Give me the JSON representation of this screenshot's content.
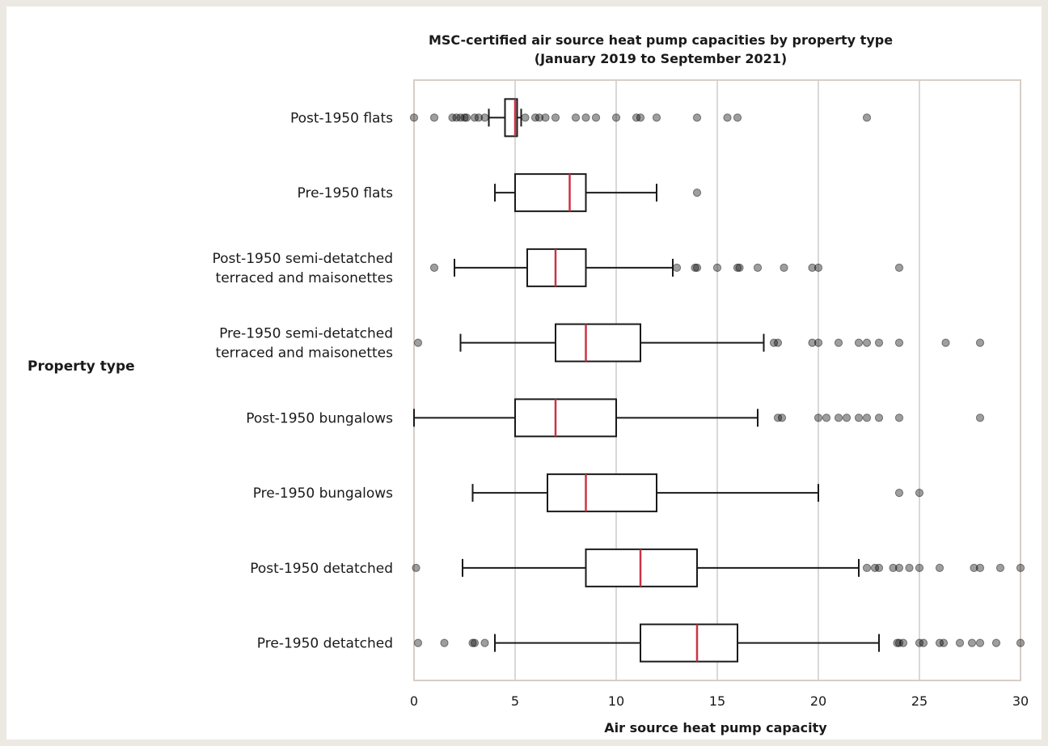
{
  "chart_data": {
    "type": "boxplot",
    "orientation": "horizontal",
    "title": "MSC-certified air source heat pump capacities by property type",
    "subtitle": "(January 2019 to September 2021)",
    "xlabel": "Air source heat pump capacity",
    "ylabel": "Property type",
    "xlim": [
      0,
      30
    ],
    "xticks": [
      0,
      5,
      10,
      15,
      20,
      25,
      30
    ],
    "grid": "vertical",
    "colors": {
      "median": "#cc3344",
      "box": "#1a1a1a",
      "grid": "#cccccc",
      "frame": "#d9ccc7",
      "background": "#ece8e2"
    },
    "categories": [
      {
        "label": [
          "Post-1950 flats"
        ],
        "whisker_low": 3.7,
        "q1": 4.5,
        "median": 5.0,
        "q3": 5.1,
        "whisker_high": 5.3,
        "outliers": [
          0.0,
          1.0,
          1.9,
          2.1,
          2.3,
          2.5,
          2.6,
          3.0,
          3.2,
          3.5,
          5.5,
          6.0,
          6.2,
          6.5,
          7.0,
          8.0,
          8.5,
          9.0,
          10.0,
          11.0,
          11.2,
          12.0,
          14.0,
          15.5,
          16.0,
          22.4
        ]
      },
      {
        "label": [
          "Pre-1950 flats"
        ],
        "whisker_low": 4.0,
        "q1": 5.0,
        "median": 7.7,
        "q3": 8.5,
        "whisker_high": 12.0,
        "outliers": [
          14.0
        ]
      },
      {
        "label": [
          "Post-1950 semi-detatched",
          "terraced and maisonettes"
        ],
        "whisker_low": 2.0,
        "q1": 5.6,
        "median": 7.0,
        "q3": 8.5,
        "whisker_high": 12.8,
        "outliers": [
          1.0,
          13.0,
          13.9,
          14.0,
          15.0,
          16.0,
          16.1,
          17.0,
          18.3,
          19.7,
          20.0,
          24.0
        ]
      },
      {
        "label": [
          "Pre-1950 semi-detatched",
          "terraced and maisonettes"
        ],
        "whisker_low": 2.3,
        "q1": 7.0,
        "median": 8.5,
        "q3": 11.2,
        "whisker_high": 17.3,
        "outliers": [
          0.2,
          17.8,
          18.0,
          19.7,
          20.0,
          21.0,
          22.0,
          22.4,
          23.0,
          24.0,
          26.3,
          28.0
        ]
      },
      {
        "label": [
          "Post-1950 bungalows"
        ],
        "whisker_low": 0.0,
        "q1": 5.0,
        "median": 7.0,
        "q3": 10.0,
        "whisker_high": 17.0,
        "outliers": [
          18.0,
          18.2,
          20.0,
          20.4,
          21.0,
          21.4,
          22.0,
          22.4,
          23.0,
          24.0,
          28.0
        ]
      },
      {
        "label": [
          "Pre-1950 bungalows"
        ],
        "whisker_low": 2.9,
        "q1": 6.6,
        "median": 8.5,
        "q3": 12.0,
        "whisker_high": 20.0,
        "outliers": [
          24.0,
          25.0
        ]
      },
      {
        "label": [
          "Post-1950 detatched"
        ],
        "whisker_low": 2.4,
        "q1": 8.5,
        "median": 11.2,
        "q3": 14.0,
        "whisker_high": 22.0,
        "outliers": [
          0.1,
          22.4,
          22.8,
          23.0,
          23.7,
          24.0,
          24.5,
          25.0,
          26.0,
          27.7,
          28.0,
          29.0,
          30.0
        ]
      },
      {
        "label": [
          "Pre-1950 detatched"
        ],
        "whisker_low": 4.0,
        "q1": 11.2,
        "median": 14.0,
        "q3": 16.0,
        "whisker_high": 23.0,
        "outliers": [
          0.2,
          1.5,
          2.9,
          3.0,
          3.5,
          23.9,
          24.0,
          24.2,
          25.0,
          25.2,
          26.0,
          26.2,
          27.0,
          27.6,
          28.0,
          28.8,
          30.0
        ]
      }
    ]
  }
}
